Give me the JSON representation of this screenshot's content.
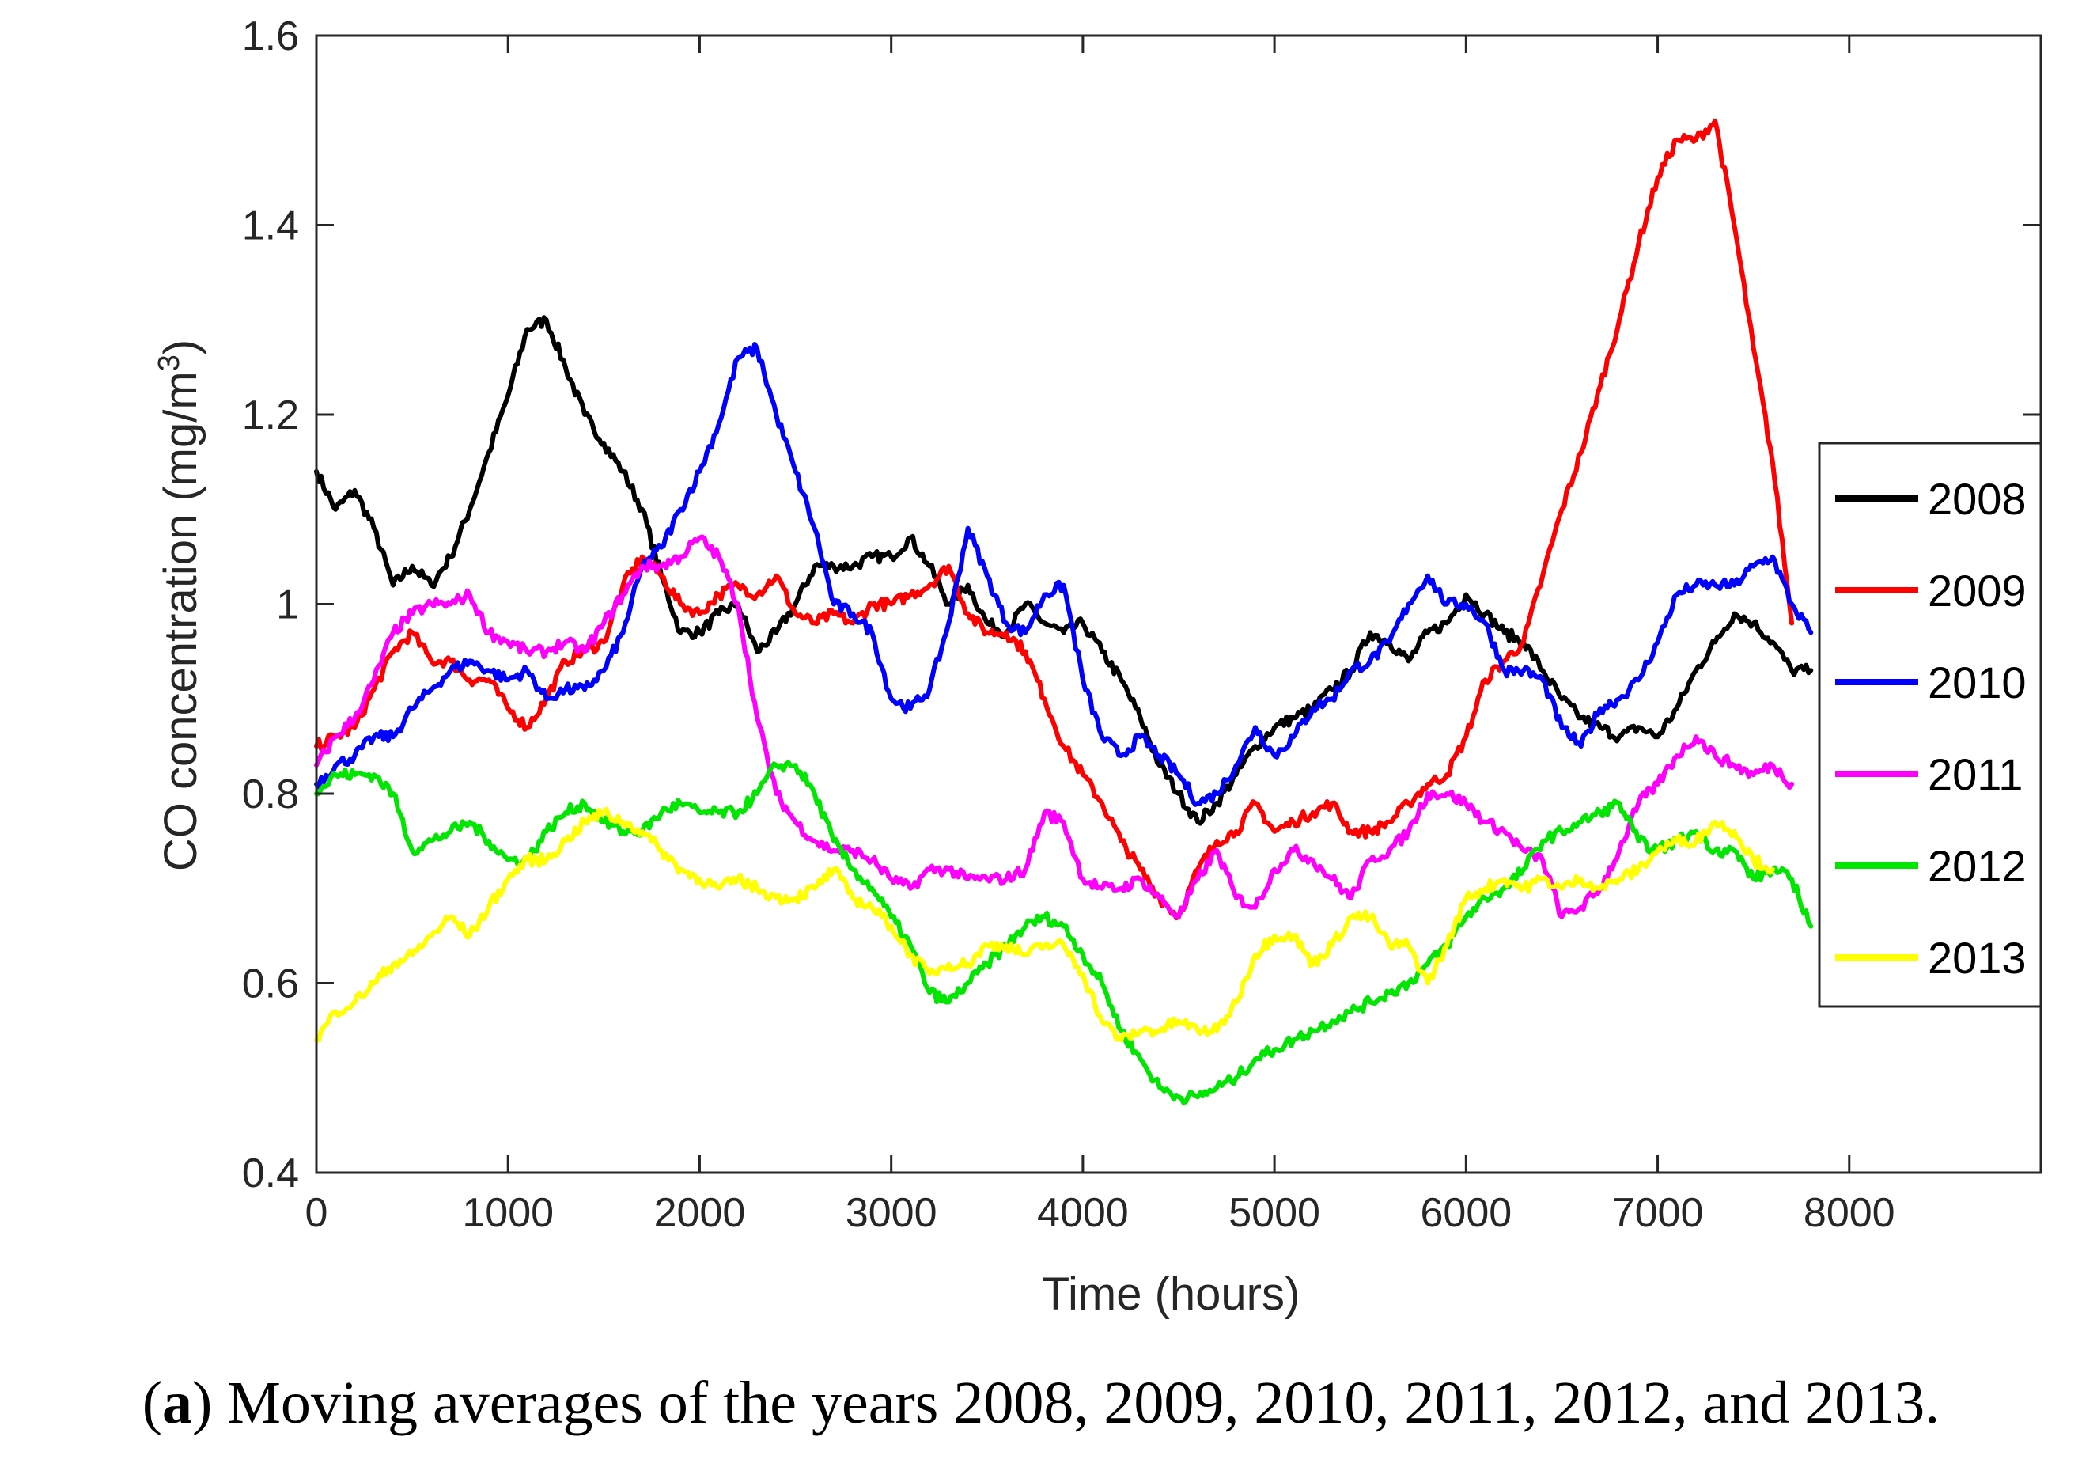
{
  "chart_data": {
    "type": "line",
    "xlabel": "Time (hours)",
    "ylabel_prefix": "CO concentration (mg/m",
    "ylabel_sup": "3",
    "ylabel_suffix": ")",
    "xlim": [
      0,
      9000
    ],
    "ylim": [
      0.4,
      1.6
    ],
    "xticks": [
      0,
      1000,
      2000,
      3000,
      4000,
      5000,
      6000,
      7000,
      8000
    ],
    "yticks": [
      0.4,
      0.6,
      0.8,
      1,
      1.2,
      1.4,
      1.6
    ],
    "xtick_labels": [
      "0",
      "1000",
      "2000",
      "3000",
      "4000",
      "5000",
      "6000",
      "7000",
      "8000"
    ],
    "ytick_labels": [
      "0.4",
      "0.6",
      "0.8",
      "1",
      "1.2",
      "1.4",
      "1.6"
    ],
    "grid": false,
    "legend_position": "right",
    "series": [
      {
        "name": "2008",
        "color": "#000000",
        "x": [
          0,
          100,
          200,
          300,
          400,
          500,
          600,
          700,
          800,
          900,
          1000,
          1100,
          1200,
          1300,
          1400,
          1500,
          1600,
          1700,
          1800,
          1900,
          2000,
          2100,
          2200,
          2300,
          2400,
          2500,
          2600,
          2700,
          2800,
          2900,
          3000,
          3100,
          3200,
          3300,
          3400,
          3500,
          3600,
          3700,
          3800,
          3900,
          4000,
          4100,
          4200,
          4300,
          4400,
          4500,
          4600,
          4700,
          4800,
          4900,
          5000,
          5100,
          5200,
          5300,
          5400,
          5500,
          5600,
          5700,
          5800,
          5900,
          6000,
          6100,
          6200,
          6300,
          6400,
          6500,
          6600,
          6700,
          6800,
          6900,
          7000,
          7100,
          7200,
          7300,
          7400,
          7500,
          7600,
          7700,
          7800
        ],
        "y": [
          1.14,
          1.1,
          1.12,
          1.08,
          1.02,
          1.04,
          1.02,
          1.05,
          1.1,
          1.16,
          1.22,
          1.29,
          1.3,
          1.25,
          1.2,
          1.17,
          1.14,
          1.1,
          1.03,
          0.97,
          0.97,
          0.99,
          1.0,
          0.95,
          0.97,
          1.0,
          1.04,
          1.04,
          1.04,
          1.05,
          1.05,
          1.07,
          1.04,
          1.0,
          1.02,
          0.98,
          0.97,
          1.0,
          0.98,
          0.97,
          0.98,
          0.95,
          0.92,
          0.88,
          0.83,
          0.8,
          0.77,
          0.79,
          0.82,
          0.85,
          0.87,
          0.88,
          0.89,
          0.91,
          0.93,
          0.97,
          0.96,
          0.94,
          0.97,
          0.98,
          1.01,
          0.99,
          0.97,
          0.96,
          0.93,
          0.9,
          0.88,
          0.87,
          0.86,
          0.87,
          0.86,
          0.89,
          0.93,
          0.96,
          0.99,
          0.98,
          0.96,
          0.93,
          0.93
        ]
      },
      {
        "name": "2009",
        "color": "#ff0000",
        "x": [
          0,
          100,
          200,
          300,
          400,
          500,
          600,
          700,
          800,
          900,
          1000,
          1100,
          1200,
          1300,
          1400,
          1500,
          1600,
          1700,
          1800,
          1900,
          2000,
          2100,
          2200,
          2300,
          2400,
          2500,
          2600,
          2700,
          2800,
          2900,
          3000,
          3100,
          3200,
          3300,
          3400,
          3500,
          3600,
          3700,
          3800,
          3900,
          4000,
          4100,
          4200,
          4300,
          4400,
          4500,
          4600,
          4700,
          4800,
          4900,
          5000,
          5100,
          5200,
          5300,
          5400,
          5500,
          5600,
          5700,
          5800,
          5900,
          6000,
          6100,
          6200,
          6300,
          6400,
          6500,
          6600,
          6700,
          6800,
          6900,
          7000,
          7100,
          7200,
          7300,
          7400,
          7500,
          7600,
          7700
        ],
        "y": [
          0.85,
          0.86,
          0.87,
          0.91,
          0.95,
          0.97,
          0.94,
          0.94,
          0.92,
          0.92,
          0.89,
          0.87,
          0.9,
          0.94,
          0.95,
          0.96,
          1.02,
          1.05,
          1.03,
          1.0,
          0.99,
          1.01,
          1.02,
          1.01,
          1.03,
          0.99,
          0.98,
          0.99,
          0.98,
          1.0,
          1.0,
          1.01,
          1.02,
          1.04,
          0.99,
          0.97,
          0.97,
          0.95,
          0.9,
          0.85,
          0.82,
          0.79,
          0.75,
          0.72,
          0.69,
          0.67,
          0.72,
          0.75,
          0.76,
          0.79,
          0.76,
          0.77,
          0.78,
          0.79,
          0.76,
          0.76,
          0.77,
          0.79,
          0.81,
          0.82,
          0.86,
          0.92,
          0.94,
          0.96,
          1.03,
          1.1,
          1.16,
          1.23,
          1.3,
          1.38,
          1.45,
          1.49,
          1.49,
          1.51,
          1.4,
          1.27,
          1.15,
          0.98
        ]
      },
      {
        "name": "2010",
        "color": "#0000ff",
        "x": [
          0,
          100,
          200,
          300,
          400,
          500,
          600,
          700,
          800,
          900,
          1000,
          1100,
          1200,
          1300,
          1400,
          1500,
          1600,
          1700,
          1800,
          1900,
          2000,
          2100,
          2200,
          2300,
          2400,
          2500,
          2600,
          2700,
          2800,
          2900,
          3000,
          3100,
          3200,
          3300,
          3400,
          3500,
          3600,
          3700,
          3800,
          3900,
          4000,
          4100,
          4200,
          4300,
          4400,
          4500,
          4600,
          4700,
          4800,
          4900,
          5000,
          5100,
          5200,
          5300,
          5400,
          5500,
          5600,
          5700,
          5800,
          5900,
          6000,
          6100,
          6200,
          6300,
          6400,
          6500,
          6600,
          6700,
          6800,
          6900,
          7000,
          7100,
          7200,
          7300,
          7400,
          7500,
          7600,
          7700,
          7800
        ],
        "y": [
          0.81,
          0.83,
          0.84,
          0.86,
          0.86,
          0.89,
          0.91,
          0.93,
          0.94,
          0.93,
          0.92,
          0.93,
          0.9,
          0.91,
          0.91,
          0.93,
          0.97,
          1.04,
          1.06,
          1.1,
          1.14,
          1.19,
          1.26,
          1.27,
          1.2,
          1.14,
          1.08,
          1.0,
          0.99,
          0.97,
          0.9,
          0.89,
          0.91,
          0.98,
          1.08,
          1.03,
          0.98,
          0.97,
          1.01,
          1.02,
          0.92,
          0.86,
          0.84,
          0.86,
          0.84,
          0.82,
          0.79,
          0.8,
          0.83,
          0.87,
          0.84,
          0.86,
          0.89,
          0.9,
          0.93,
          0.94,
          0.96,
          1.0,
          1.03,
          1.0,
          1.0,
          0.98,
          0.93,
          0.93,
          0.92,
          0.87,
          0.85,
          0.89,
          0.9,
          0.92,
          0.96,
          1.01,
          1.02,
          1.02,
          1.02,
          1.04,
          1.05,
          1.0,
          0.97
        ]
      },
      {
        "name": "2011",
        "color": "#ff00ff",
        "x": [
          0,
          100,
          200,
          300,
          400,
          500,
          600,
          700,
          800,
          900,
          1000,
          1100,
          1200,
          1300,
          1400,
          1500,
          1600,
          1700,
          1800,
          1900,
          2000,
          2100,
          2200,
          2300,
          2400,
          2500,
          2600,
          2700,
          2800,
          2900,
          3000,
          3100,
          3200,
          3300,
          3400,
          3500,
          3600,
          3700,
          3800,
          3900,
          4000,
          4100,
          4200,
          4300,
          4400,
          4500,
          4600,
          4700,
          4800,
          4900,
          5000,
          5100,
          5200,
          5300,
          5400,
          5500,
          5600,
          5700,
          5800,
          5900,
          6000,
          6100,
          6200,
          6300,
          6400,
          6500,
          6600,
          6700,
          6800,
          6900,
          7000,
          7100,
          7200,
          7300,
          7400,
          7500,
          7600,
          7700
        ],
        "y": [
          0.83,
          0.86,
          0.88,
          0.92,
          0.97,
          0.99,
          1.0,
          1.0,
          1.01,
          0.97,
          0.96,
          0.95,
          0.95,
          0.96,
          0.95,
          0.98,
          1.01,
          1.04,
          1.04,
          1.05,
          1.07,
          1.05,
          1.0,
          0.88,
          0.8,
          0.77,
          0.75,
          0.74,
          0.74,
          0.73,
          0.71,
          0.7,
          0.72,
          0.72,
          0.71,
          0.71,
          0.71,
          0.72,
          0.78,
          0.77,
          0.71,
          0.7,
          0.7,
          0.71,
          0.69,
          0.67,
          0.71,
          0.74,
          0.69,
          0.68,
          0.72,
          0.74,
          0.73,
          0.71,
          0.69,
          0.73,
          0.74,
          0.76,
          0.8,
          0.8,
          0.79,
          0.77,
          0.76,
          0.74,
          0.73,
          0.67,
          0.68,
          0.7,
          0.74,
          0.79,
          0.81,
          0.84,
          0.86,
          0.84,
          0.83,
          0.82,
          0.83,
          0.81
        ]
      },
      {
        "name": "2012",
        "color": "#00e600",
        "x": [
          0,
          100,
          200,
          300,
          400,
          500,
          600,
          700,
          800,
          900,
          1000,
          1100,
          1200,
          1300,
          1400,
          1500,
          1600,
          1700,
          1800,
          1900,
          2000,
          2100,
          2200,
          2300,
          2400,
          2500,
          2600,
          2700,
          2800,
          2900,
          3000,
          3100,
          3200,
          3300,
          3400,
          3500,
          3600,
          3700,
          3800,
          3900,
          4000,
          4100,
          4200,
          4300,
          4400,
          4500,
          4600,
          4700,
          4800,
          4900,
          5000,
          5100,
          5200,
          5300,
          5400,
          5500,
          5600,
          5700,
          5800,
          5900,
          6000,
          6100,
          6200,
          6300,
          6400,
          6500,
          6600,
          6700,
          6800,
          6900,
          7000,
          7100,
          7200,
          7300,
          7400,
          7500,
          7600,
          7700,
          7800
        ],
        "y": [
          0.8,
          0.82,
          0.82,
          0.82,
          0.8,
          0.74,
          0.75,
          0.76,
          0.77,
          0.75,
          0.73,
          0.73,
          0.76,
          0.78,
          0.79,
          0.77,
          0.76,
          0.76,
          0.78,
          0.79,
          0.78,
          0.78,
          0.78,
          0.8,
          0.83,
          0.83,
          0.8,
          0.75,
          0.72,
          0.7,
          0.67,
          0.64,
          0.59,
          0.58,
          0.6,
          0.62,
          0.64,
          0.66,
          0.67,
          0.66,
          0.63,
          0.6,
          0.55,
          0.52,
          0.49,
          0.48,
          0.48,
          0.49,
          0.5,
          0.52,
          0.53,
          0.54,
          0.55,
          0.56,
          0.57,
          0.58,
          0.59,
          0.6,
          0.62,
          0.64,
          0.67,
          0.69,
          0.7,
          0.72,
          0.75,
          0.76,
          0.77,
          0.78,
          0.79,
          0.75,
          0.74,
          0.75,
          0.76,
          0.74,
          0.74,
          0.71,
          0.72,
          0.71,
          0.66
        ]
      },
      {
        "name": "2013",
        "color": "#ffff00",
        "x": [
          0,
          100,
          200,
          300,
          400,
          500,
          600,
          700,
          800,
          900,
          1000,
          1100,
          1200,
          1300,
          1400,
          1500,
          1600,
          1700,
          1800,
          1900,
          2000,
          2100,
          2200,
          2300,
          2400,
          2500,
          2600,
          2700,
          2800,
          2900,
          3000,
          3100,
          3200,
          3300,
          3400,
          3500,
          3600,
          3700,
          3800,
          3900,
          4000,
          4100,
          4200,
          4300,
          4400,
          4500,
          4600,
          4700,
          4800,
          4900,
          5000,
          5100,
          5200,
          5300,
          5400,
          5500,
          5600,
          5700,
          5800,
          5900,
          6000,
          6100,
          6200,
          6300,
          6400,
          6500,
          6600,
          6700,
          6800,
          6900,
          7000,
          7100,
          7200,
          7300,
          7400,
          7500,
          7600
        ],
        "y": [
          0.54,
          0.57,
          0.58,
          0.6,
          0.62,
          0.63,
          0.65,
          0.67,
          0.65,
          0.68,
          0.71,
          0.73,
          0.73,
          0.75,
          0.77,
          0.78,
          0.77,
          0.76,
          0.74,
          0.72,
          0.71,
          0.7,
          0.71,
          0.7,
          0.69,
          0.69,
          0.7,
          0.72,
          0.69,
          0.68,
          0.66,
          0.63,
          0.61,
          0.62,
          0.62,
          0.64,
          0.64,
          0.63,
          0.64,
          0.64,
          0.61,
          0.56,
          0.54,
          0.55,
          0.55,
          0.56,
          0.55,
          0.55,
          0.58,
          0.63,
          0.65,
          0.65,
          0.62,
          0.64,
          0.67,
          0.67,
          0.64,
          0.64,
          0.6,
          0.64,
          0.69,
          0.7,
          0.71,
          0.7,
          0.71,
          0.7,
          0.71,
          0.7,
          0.71,
          0.72,
          0.74,
          0.75,
          0.75,
          0.77,
          0.76,
          0.73,
          0.72
        ]
      }
    ]
  },
  "caption": {
    "label": "a",
    "text": " Moving averages of the years  2008,  2009,  2010,  2011,  2012, and  2013."
  }
}
